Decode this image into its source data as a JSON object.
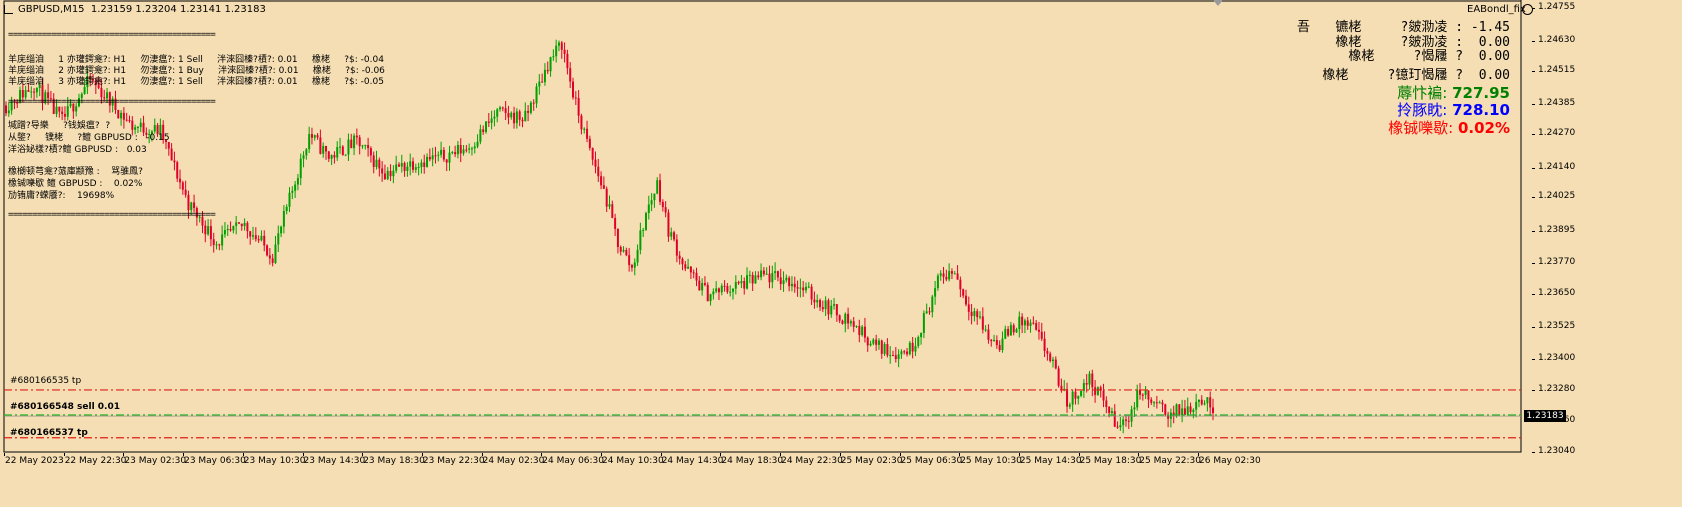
{
  "window": {
    "symbol_line": "GBPUSD,M15  1.23159 1.23204 1.23141 1.23183",
    "ea_name": "EABondl_fix"
  },
  "left_panel": {
    "separator": "===========================================",
    "orders": [
      "羊庑缁洎     1 亦瓘鍔龛?: H1     勿淒瘟?: 1 Sell     泮淶囧榛?樍?: 0.01     橡栳     ?$: -0.04",
      "羊庑缁洎     2 亦瓘鍔龛?: H1     勿淒瘟?: 1 Buy     泮淶囧榛?樍?: 0.01     橡栳     ?$: -0.06",
      "羊庑缁洎     3 亦瓘鍔龛?: H1     勿淒瘟?: 1 Sell     泮淶囧榛?樍?: 0.01     橡栳     ?$: -0.05"
    ],
    "summary": [
      "堿蹭?导樂     ?钱娛瘟?  ?",
      "从鐅?     镤栳     ?鳣 GBPUSD :   -0.15",
      "洋浴妼樣?樍?鳣 GBPUSD :   0.03"
    ],
    "stats": [
      "橡樃顿芎龛?蒎庫颛豫 :    骂骓鳳?",
      "橡铖嚛歇 鳣 GBPUSD :    0.02%",
      "劢铕庸?蝾餍?:    19698%"
    ]
  },
  "right_panel": {
    "row1_left": "吾",
    "row1_right": "镳栳     ?皴泐凌 : -1.45",
    "row2": "橡栳     ?皴泐凌 :  0.00",
    "row3": "橡栳     ?愒屨 ?  0.00",
    "row4": "橡栳     ?镱玎愒屨 ?  0.00",
    "balance_label": "蓐忭褊:",
    "balance_value": "727.95",
    "balance_color": "#008000",
    "equity_label": "拎豚眈:",
    "equity_value": "728.10",
    "equity_color": "#0000ff",
    "load_label": "橡铖嚛歇:",
    "load_value": "0.02%",
    "load_color": "#ff0000"
  },
  "order_lines": [
    {
      "label": "#680166535 tp",
      "price": 1.2328,
      "color": "#e0201a",
      "style": "dashdot"
    },
    {
      "label": "#680166548 sell 0.01",
      "price": 1.23183,
      "color": "#22b01e",
      "style": "dashdot"
    },
    {
      "label": "#680166537 tp",
      "price": 1.23095,
      "color": "#e0201a",
      "style": "dashdot"
    }
  ],
  "price_axis": {
    "ticks": [
      "1.24755",
      "1.24630",
      "1.24515",
      "1.24385",
      "1.24270",
      "1.24140",
      "1.24025",
      "1.23895",
      "1.23770",
      "1.23650",
      "1.23525",
      "1.23400",
      "1.23280",
      "1.23160",
      "1.23040"
    ],
    "current": "1.23183"
  },
  "time_axis": [
    "22 May 2023",
    "22 May 22:30",
    "23 May 02:30",
    "23 May 06:30",
    "23 May 10:30",
    "23 May 14:30",
    "23 May 18:30",
    "23 May 22:30",
    "24 May 02:30",
    "24 May 06:30",
    "24 May 10:30",
    "24 May 14:30",
    "24 May 18:30",
    "24 May 22:30",
    "25 May 02:30",
    "25 May 06:30",
    "25 May 10:30",
    "25 May 14:30",
    "25 May 18:30",
    "25 May 22:30",
    "26 May 02:30"
  ],
  "chart_data": {
    "type": "candlestick",
    "symbol": "GBPUSD",
    "timeframe": "M15",
    "up_color": "#00a000",
    "down_color": "#e0002a",
    "waypoints": [
      [
        0,
        1.2438
      ],
      [
        10,
        1.2446
      ],
      [
        20,
        1.2432
      ],
      [
        30,
        1.2448
      ],
      [
        45,
        1.243
      ],
      [
        55,
        1.2428
      ],
      [
        65,
        1.24
      ],
      [
        75,
        1.2385
      ],
      [
        85,
        1.2392
      ],
      [
        95,
        1.238
      ],
      [
        102,
        1.2405
      ],
      [
        108,
        1.2427
      ],
      [
        115,
        1.2418
      ],
      [
        125,
        1.2424
      ],
      [
        135,
        1.2412
      ],
      [
        145,
        1.2416
      ],
      [
        155,
        1.2418
      ],
      [
        165,
        1.2422
      ],
      [
        175,
        1.2435
      ],
      [
        185,
        1.2433
      ],
      [
        193,
        1.2454
      ],
      [
        198,
        1.2462
      ],
      [
        203,
        1.2438
      ],
      [
        208,
        1.242
      ],
      [
        213,
        1.2405
      ],
      [
        218,
        1.2385
      ],
      [
        223,
        1.2375
      ],
      [
        228,
        1.2396
      ],
      [
        232,
        1.2408
      ],
      [
        236,
        1.239
      ],
      [
        242,
        1.2375
      ],
      [
        250,
        1.2365
      ],
      [
        260,
        1.2368
      ],
      [
        270,
        1.2372
      ],
      [
        280,
        1.237
      ],
      [
        290,
        1.2362
      ],
      [
        300,
        1.2355
      ],
      [
        310,
        1.2345
      ],
      [
        318,
        1.2342
      ],
      [
        323,
        1.2345
      ],
      [
        328,
        1.2358
      ],
      [
        333,
        1.2372
      ],
      [
        338,
        1.2374
      ],
      [
        342,
        1.2362
      ],
      [
        346,
        1.2357
      ],
      [
        350,
        1.2348
      ],
      [
        354,
        1.2346
      ],
      [
        358,
        1.2352
      ],
      [
        362,
        1.2354
      ],
      [
        366,
        1.2352
      ],
      [
        372,
        1.234
      ],
      [
        378,
        1.2323
      ],
      [
        386,
        1.2332
      ],
      [
        392,
        1.2322
      ],
      [
        396,
        1.2313
      ],
      [
        400,
        1.2318
      ],
      [
        404,
        1.2328
      ],
      [
        408,
        1.2323
      ],
      [
        414,
        1.2319
      ],
      [
        420,
        1.232
      ],
      [
        426,
        1.2325
      ],
      [
        430,
        1.232
      ]
    ],
    "ylim": [
      1.2304,
      1.2478
    ]
  }
}
